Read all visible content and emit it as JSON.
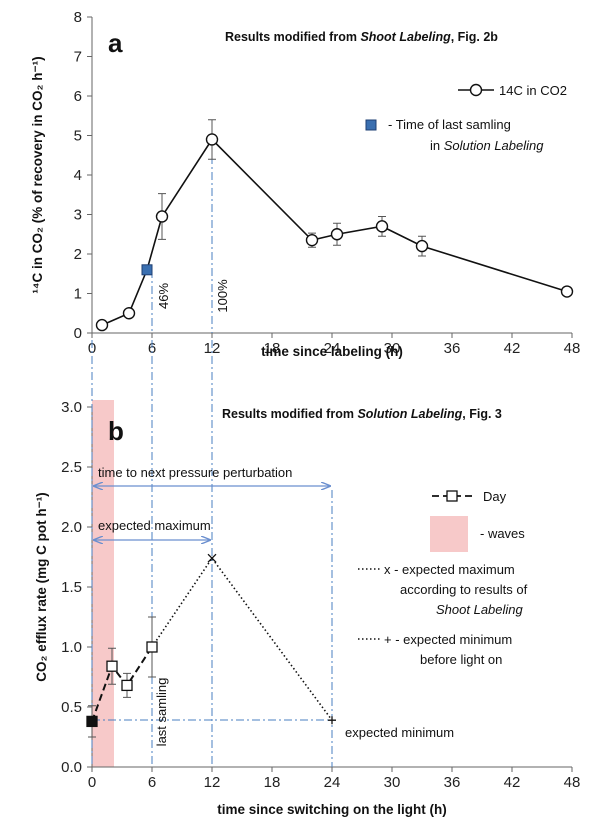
{
  "chart_data": [
    {
      "type": "line",
      "panel_letter": "a",
      "title_parts": {
        "pre": "Results  modified from ",
        "em": "Shoot Labeling",
        "post": ", Fig. 2b"
      },
      "xlabel": "time since labeling  (h)",
      "ylabel": "¹⁴C in CO₂ (% of recovery in CO₂ h⁻¹)",
      "xlim": [
        0,
        48
      ],
      "ylim": [
        0,
        8
      ],
      "xticks": [
        "0",
        "6",
        "12",
        "18",
        "24",
        "30",
        "36",
        "42",
        "48"
      ],
      "yticks": [
        "0",
        "1",
        "2",
        "3",
        "4",
        "5",
        "6",
        "7",
        "8"
      ],
      "series": [
        {
          "name": "14C in CO2",
          "x": [
            1,
            3.7,
            7,
            12,
            22,
            24.5,
            29,
            33,
            47.5
          ],
          "y": [
            0.2,
            0.5,
            2.95,
            4.9,
            2.35,
            2.5,
            2.7,
            2.2,
            1.05
          ],
          "err": [
            0,
            0,
            0.58,
            0.5,
            0.18,
            0.28,
            0.25,
            0.25,
            0
          ]
        }
      ],
      "highlight_point": {
        "x": 5.5,
        "y": 1.6,
        "color": "#3a6fb0"
      },
      "legend": {
        "series_label": "14C in CO2",
        "marker_label_line1": "-    Time of  last samling",
        "marker_label_line2_pre": "in ",
        "marker_label_line2_em": "Solution Labeling"
      },
      "annotations": {
        "label_46": "46%",
        "label_100": "100%"
      }
    },
    {
      "type": "line",
      "panel_letter": "b",
      "title_parts": {
        "pre": "Results modified from ",
        "em": "Solution Labeling",
        "post": ", Fig. 3"
      },
      "xlabel": "time since switching on the light (h)",
      "ylabel": "CO₂ efflux rate (mg C pot h⁻¹)",
      "xlim": [
        0,
        48
      ],
      "ylim": [
        0,
        3
      ],
      "xticks": [
        "0",
        "6",
        "12",
        "18",
        "24",
        "30",
        "36",
        "42",
        "48"
      ],
      "yticks": [
        "0.0",
        "0.5",
        "1.0",
        "1.5",
        "2.0",
        "2.5",
        "3.0"
      ],
      "waves_band": {
        "x0": 0,
        "x1": 2.2,
        "color": "#f7c9c9"
      },
      "series": [
        {
          "name": "Day",
          "x": [
            0,
            2,
            3.5,
            6
          ],
          "y": [
            0.38,
            0.84,
            0.68,
            1.0
          ],
          "err": [
            0.13,
            0.15,
            0.1,
            0.25
          ]
        }
      ],
      "expected_max_line": {
        "x": [
          6,
          12,
          24
        ],
        "y": [
          1.0,
          1.74,
          0.39
        ]
      },
      "legend": {
        "day_label": "Day",
        "waves_label": "- waves",
        "max_label_line1": "x - expected maximum",
        "max_label_line2": "according to results of",
        "max_label_line3": "Shoot Labeling",
        "min_label_line1": "+  - expected minimum",
        "min_label_line2": "before light on"
      },
      "annotations": {
        "next_perturbation": "time to next pressure perturbation",
        "expected_maximum": "expected maximum",
        "last_sampling": "last samling",
        "expected_minimum": "expected minimum"
      }
    }
  ],
  "colors": {
    "guide": "#4a7fc1",
    "arrow": "#6b8fcf",
    "line": "#111111"
  }
}
